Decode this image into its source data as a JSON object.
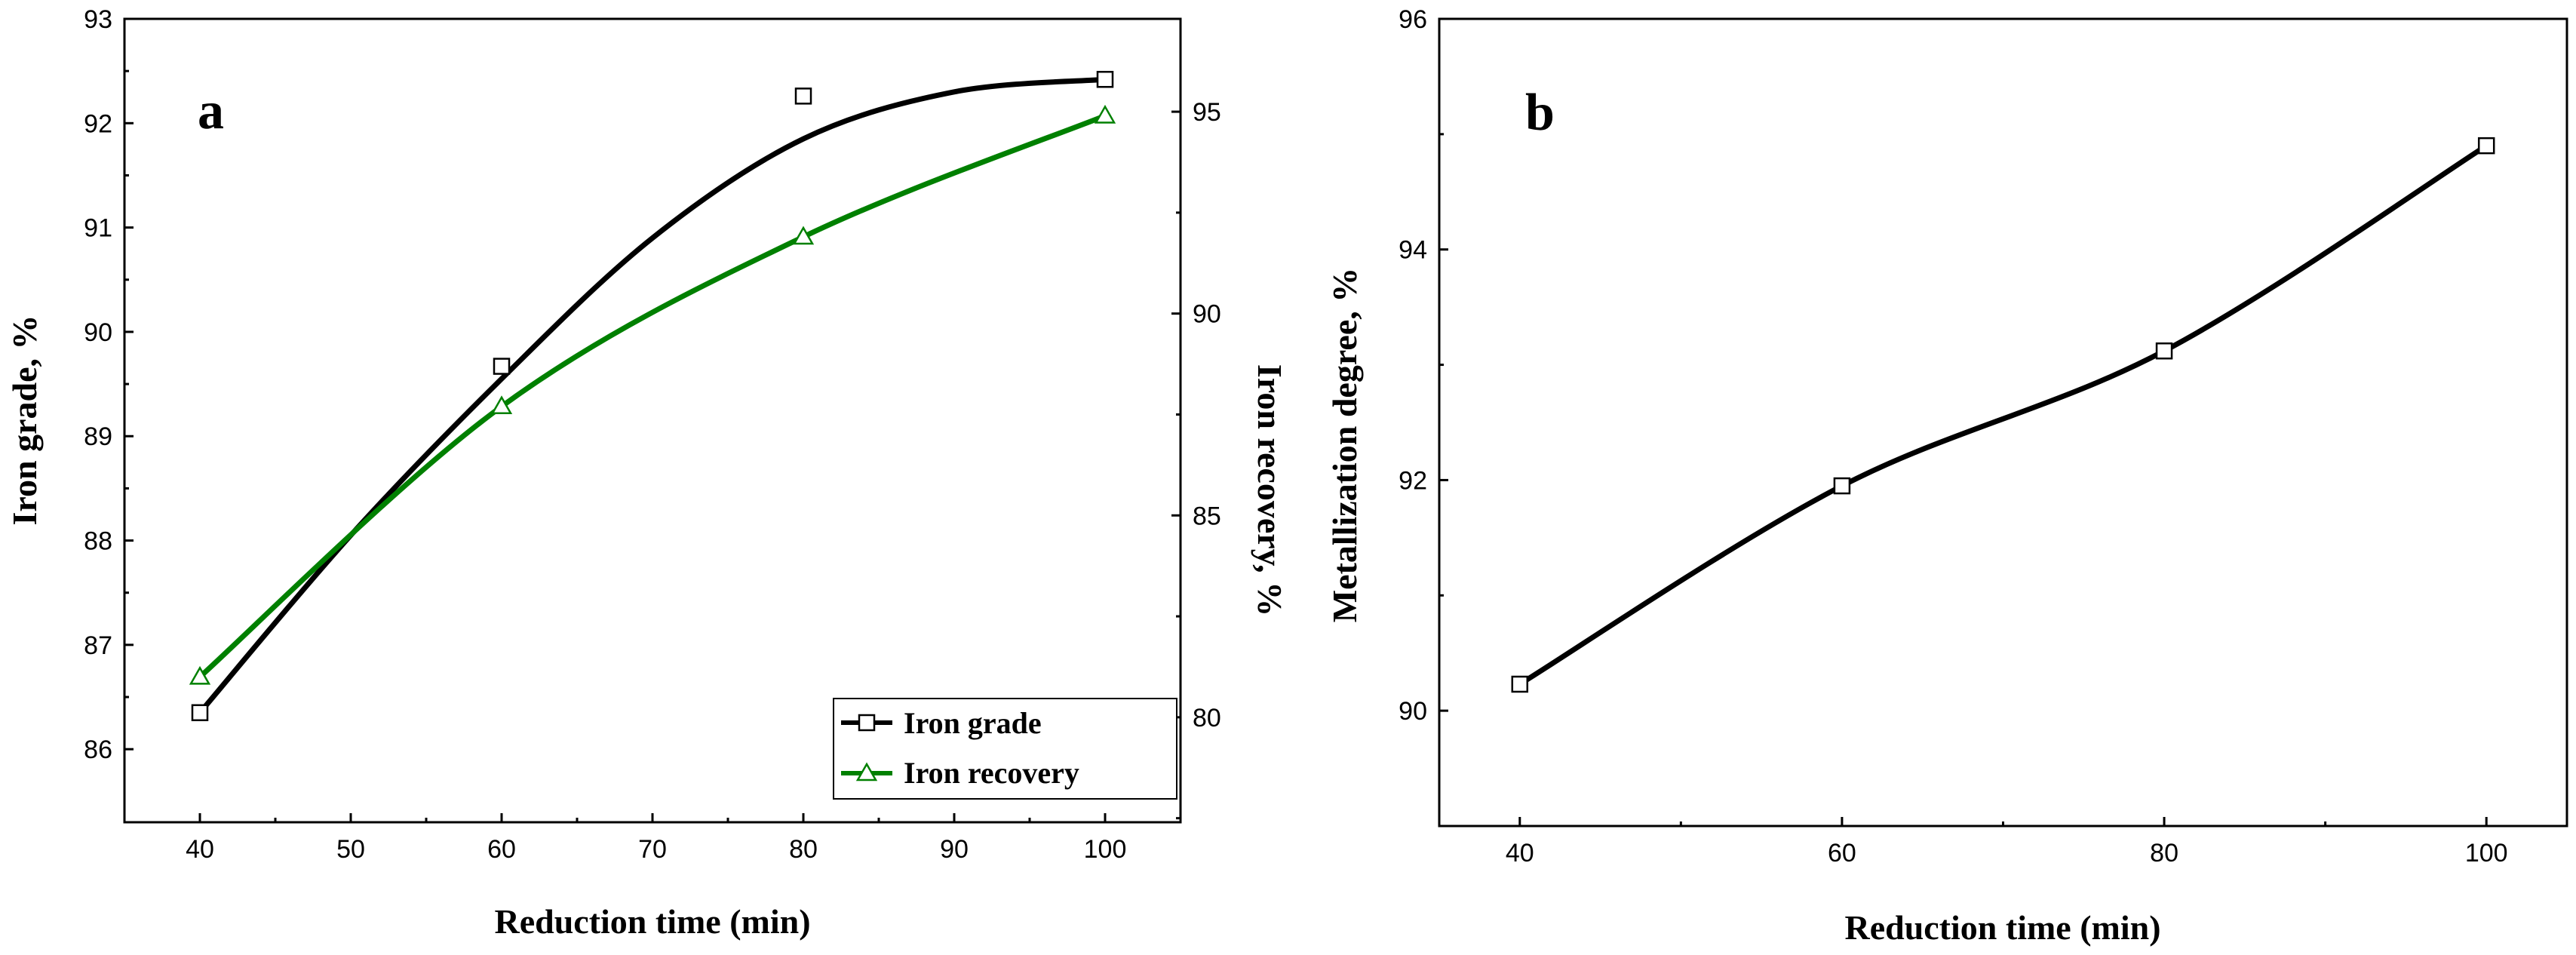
{
  "chart_data": [
    {
      "type": "line",
      "panel_label": "a",
      "xlabel": "Reduction time (min)",
      "ylabel_left": "Iron grade, %",
      "ylabel_right": "Iron recovery, %",
      "xlim": [
        35,
        105
      ],
      "ylim_left": [
        85.3,
        93
      ],
      "ylim_right": [
        77.4,
        97.3
      ],
      "x_ticks": [
        40,
        50,
        60,
        70,
        80,
        90,
        100
      ],
      "y_ticks_left": [
        86,
        87,
        88,
        89,
        90,
        91,
        92,
        93
      ],
      "y_ticks_right": [
        80,
        85,
        90,
        95
      ],
      "legend_position": "bottom-right",
      "series": [
        {
          "name": "Iron grade",
          "axis": "left",
          "color": "#000000",
          "marker": "square",
          "x": [
            40,
            60,
            80,
            100
          ],
          "values": [
            86.35,
            89.67,
            92.26,
            92.42
          ]
        },
        {
          "name": "Iron recovery",
          "axis": "right",
          "color": "#008000",
          "marker": "triangle",
          "x": [
            40,
            60,
            80,
            100
          ],
          "values": [
            81.0,
            87.7,
            91.9,
            94.9
          ]
        }
      ]
    },
    {
      "type": "line",
      "panel_label": "b",
      "xlabel": "Reduction time (min)",
      "ylabel": "Metallization degree, %",
      "xlim": [
        35,
        105
      ],
      "ylim": [
        89,
        96
      ],
      "x_ticks": [
        40,
        60,
        80,
        100
      ],
      "y_ticks": [
        90,
        92,
        94,
        96
      ],
      "series": [
        {
          "name": "Metallization degree",
          "color": "#000000",
          "marker": "square",
          "x": [
            40,
            60,
            80,
            100
          ],
          "values": [
            90.23,
            91.95,
            93.12,
            94.9
          ]
        }
      ]
    }
  ]
}
